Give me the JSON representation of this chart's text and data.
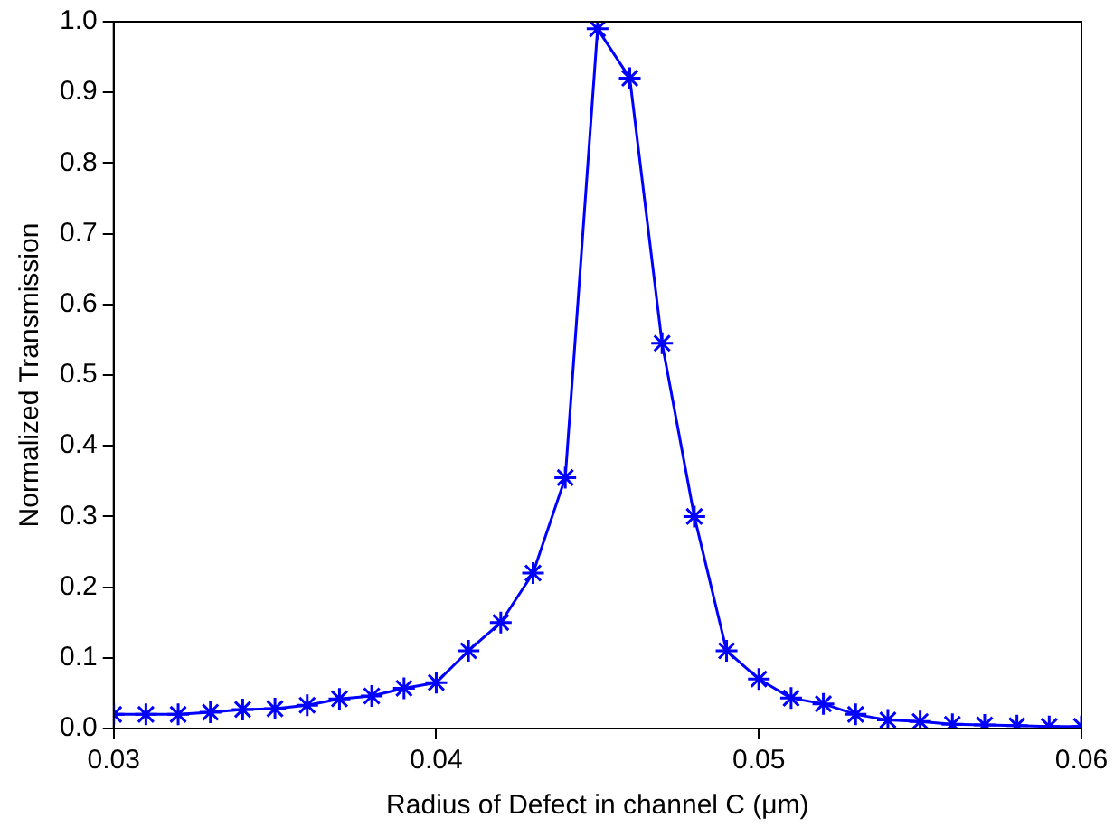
{
  "chart_data": {
    "type": "line",
    "xlabel": "Radius of Defect in channel C (μm)",
    "ylabel": "Normalized Transmission",
    "xlim": [
      0.03,
      0.06
    ],
    "xticks": [
      0.03,
      0.04,
      0.05,
      0.06
    ],
    "ylim": [
      0,
      1
    ],
    "yticks": [
      {
        "value": 0,
        "label": "0.0"
      },
      0.1,
      0.2,
      0.3,
      0.4,
      0.5,
      0.6,
      0.7,
      0.8,
      0.9,
      {
        "value": 1,
        "label": "1.0"
      }
    ],
    "grid": false,
    "legend": false,
    "marker": "cross",
    "line_style": "solid",
    "x": [
      0.03,
      0.031,
      0.032,
      0.033,
      0.034,
      0.035,
      0.036,
      0.037,
      0.038,
      0.039,
      0.04,
      0.041,
      0.042,
      0.043,
      0.044,
      0.045,
      0.046,
      0.047,
      0.048,
      0.049,
      0.05,
      0.051,
      0.052,
      0.053,
      0.054,
      0.055,
      0.056,
      0.057,
      0.058,
      0.059,
      0.06
    ],
    "series": [
      {
        "color": "#0000ff",
        "values": [
          0.02,
          0.02,
          0.02,
          0.023,
          0.027,
          0.028,
          0.033,
          0.042,
          0.046,
          0.057,
          0.065,
          0.11,
          0.15,
          0.22,
          0.355,
          0.99,
          0.92,
          0.545,
          0.3,
          0.11,
          0.07,
          0.043,
          0.035,
          0.02,
          0.012,
          0.01,
          0.006,
          0.005,
          0.004,
          0.003,
          0.003
        ]
      }
    ]
  }
}
